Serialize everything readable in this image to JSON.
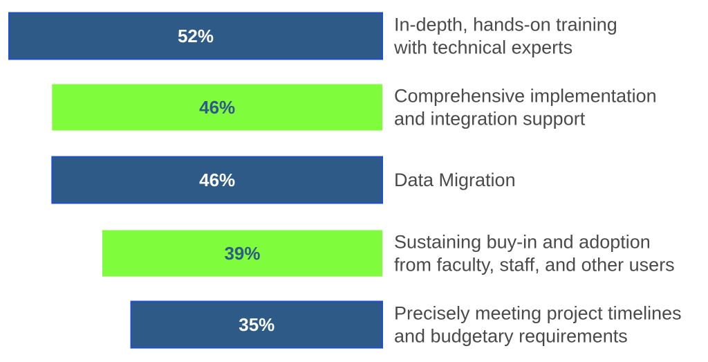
{
  "chart_data": {
    "type": "bar",
    "orientation": "horizontal",
    "categories": [
      [
        "In-depth, hands-on training",
        "with technical experts"
      ],
      [
        "Comprehensive implementation",
        "and integration support"
      ],
      [
        "Data Migration"
      ],
      [
        "Sustaining buy-in and adoption",
        "from faculty, staff, and other users"
      ],
      [
        "Precisely meeting project timelines",
        "and budgetary requirements"
      ]
    ],
    "values": [
      52,
      46,
      46,
      39,
      35
    ],
    "data_labels": [
      "52%",
      "46%",
      "46%",
      "39%",
      "35%"
    ],
    "bar_colors": [
      "#2e5a87",
      "#7ffc3c",
      "#2e5a87",
      "#7ffc3c",
      "#2e5a87"
    ],
    "bar_border_color": "#1f4fd1",
    "label_colors": [
      "#ffffff",
      "#2e5a87",
      "#ffffff",
      "#2e5a87",
      "#ffffff"
    ],
    "bars_aligned": "right",
    "legend": "none",
    "grid": false,
    "xlim": [
      0,
      52
    ]
  }
}
